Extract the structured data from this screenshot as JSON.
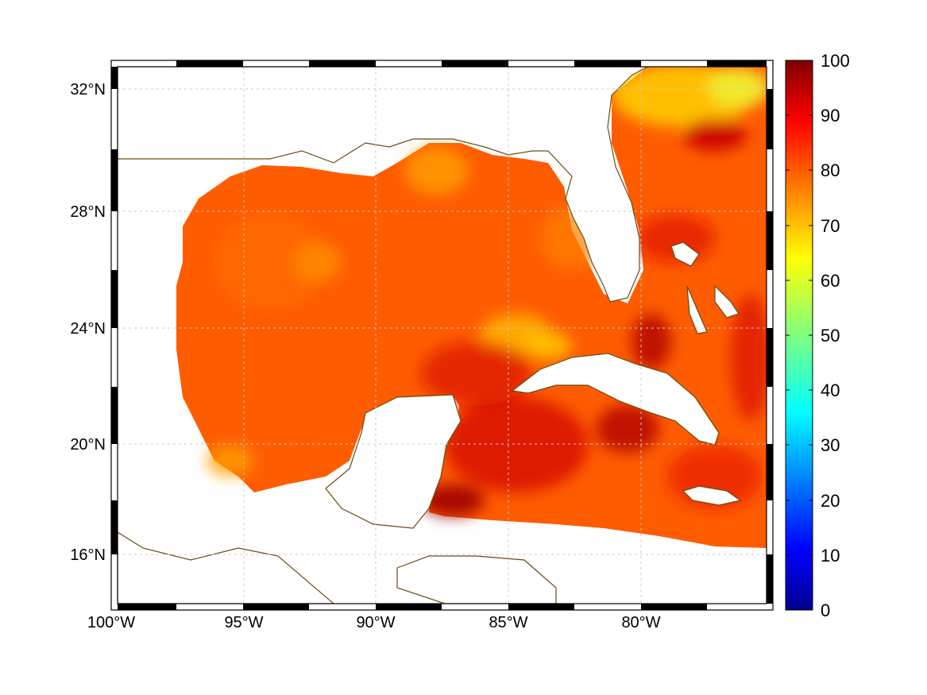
{
  "map": {
    "lon_labels": [
      "100°W",
      "95°W",
      "90°W",
      "85°W",
      "80°W"
    ],
    "lat_labels": [
      "32°N",
      "28°N",
      "24°N",
      "20°N",
      "16°N"
    ]
  },
  "colorbar": {
    "ticks": [
      "0",
      "10",
      "20",
      "30",
      "40",
      "50",
      "60",
      "70",
      "80",
      "90",
      "100"
    ],
    "range": [
      0,
      100
    ],
    "colormap": "jet"
  },
  "colors": {
    "field_base": "#ff5a00",
    "coastline": "#6b4a10",
    "land": "#ffffff"
  }
}
